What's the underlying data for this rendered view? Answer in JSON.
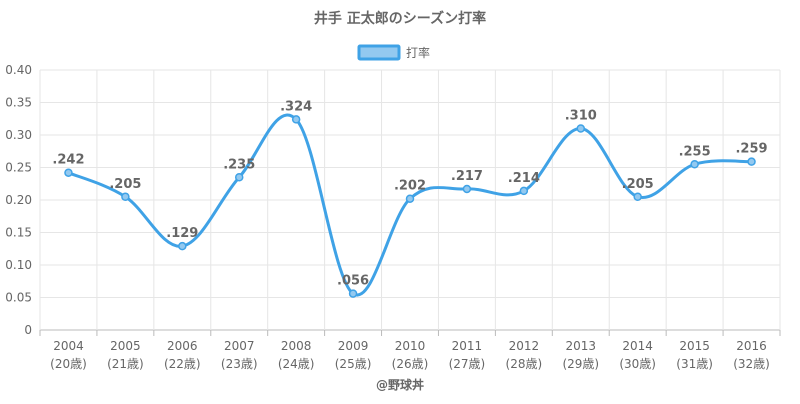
{
  "chart_data": {
    "type": "line",
    "title": "井手 正太郎のシーズン打率",
    "legend": {
      "position": "top",
      "label": "打率"
    },
    "categories": [
      "2004",
      "2005",
      "2006",
      "2007",
      "2008",
      "2009",
      "2010",
      "2011",
      "2012",
      "2013",
      "2014",
      "2015",
      "2016"
    ],
    "category_sublabels": [
      "(20歳)",
      "(21歳)",
      "(22歳)",
      "(23歳)",
      "(24歳)",
      "(25歳)",
      "(26歳)",
      "(27歳)",
      "(28歳)",
      "(29歳)",
      "(30歳)",
      "(31歳)",
      "(32歳)"
    ],
    "series": [
      {
        "name": "打率",
        "values": [
          0.242,
          0.205,
          0.129,
          0.235,
          0.324,
          0.056,
          0.202,
          0.217,
          0.214,
          0.31,
          0.205,
          0.255,
          0.259
        ],
        "labels": [
          ".242",
          ".205",
          ".129",
          ".235",
          ".324",
          ".056",
          ".202",
          ".217",
          ".214",
          ".310",
          ".205",
          ".255",
          ".259"
        ]
      }
    ],
    "ylim": [
      0,
      0.4
    ],
    "yticks": [
      "0",
      "0.05",
      "0.10",
      "0.15",
      "0.20",
      "0.25",
      "0.30",
      "0.35",
      "0.40"
    ],
    "ytick_values": [
      0,
      0.05,
      0.1,
      0.15,
      0.2,
      0.25,
      0.3,
      0.35,
      0.4
    ],
    "grid": true,
    "colors": {
      "line": "#3fa2e6",
      "legend_fill": "#93c9f0",
      "legend_border": "#3fa2e6"
    },
    "xlabel": "",
    "ylabel": ""
  },
  "footer": {
    "source": "@野球丼"
  }
}
